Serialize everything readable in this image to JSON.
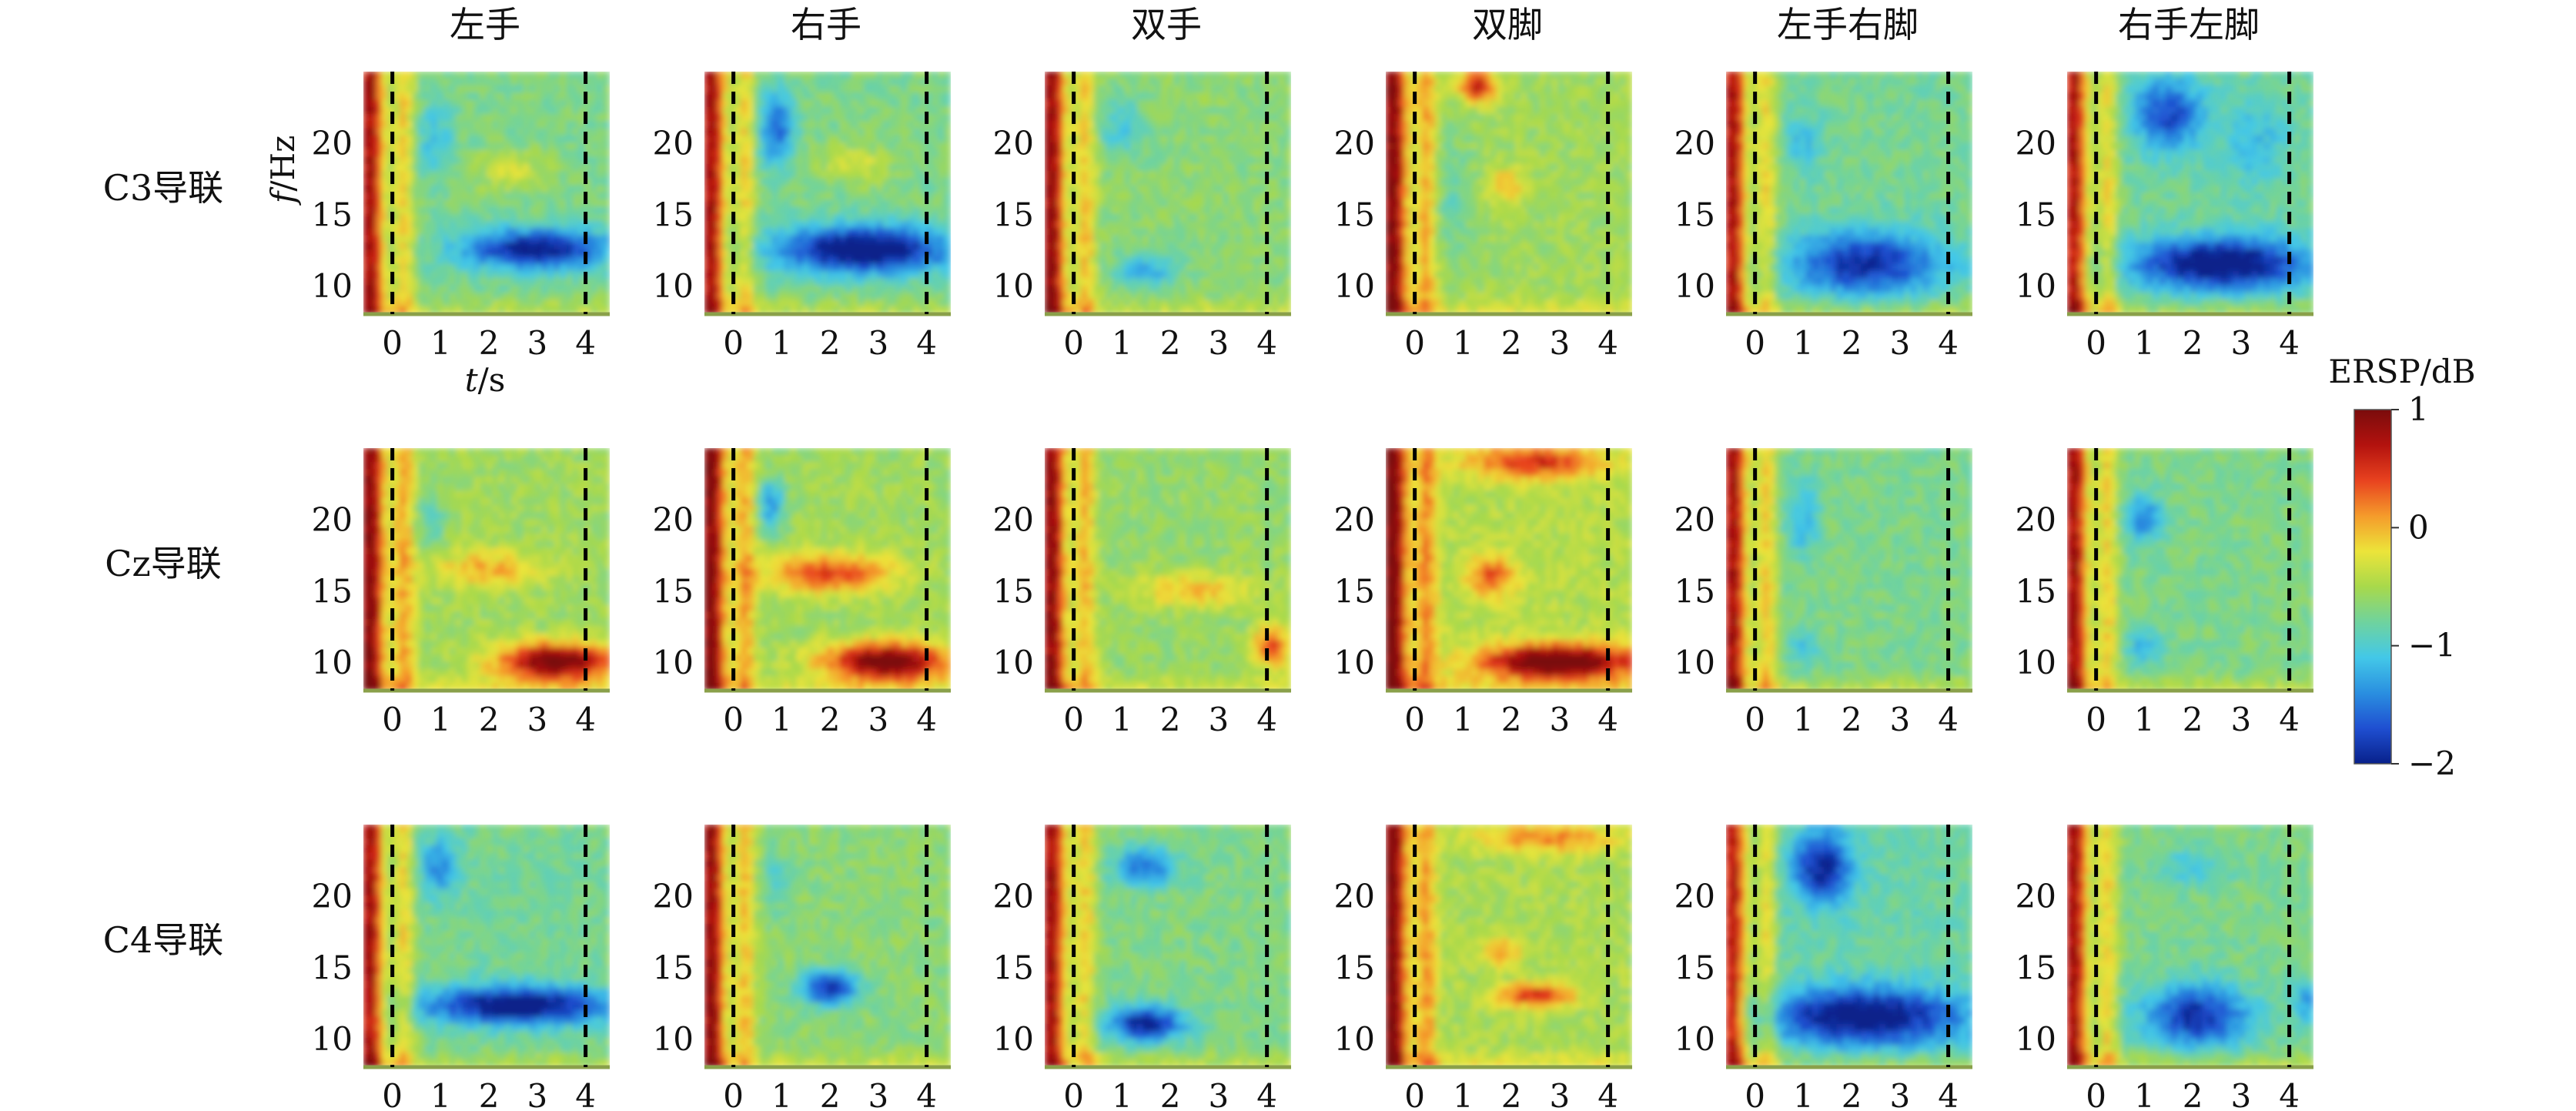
{
  "chart_data": {
    "type": "heatmap",
    "layout": "3x6 small multiples",
    "columns": [
      "左手",
      "右手",
      "双手",
      "双脚",
      "左手右脚",
      "右手左脚"
    ],
    "rows": [
      "C3导联",
      "Cz导联",
      "C4导联"
    ],
    "xlabel_prefix": "t",
    "xlabel_suffix": "/s",
    "ylabel_prefix": "f",
    "ylabel_suffix": "/Hz",
    "x_ticks": [
      "0",
      "1",
      "2",
      "3",
      "4"
    ],
    "y_ticks": [
      "20",
      "15",
      "10"
    ],
    "xlim": [
      -0.6,
      4.5
    ],
    "ylim": [
      8,
      25
    ],
    "event_markers_s": [
      0,
      4
    ],
    "colorbar": {
      "label": "ERSP/dB",
      "range": [
        -2,
        1
      ],
      "ticks": [
        "1",
        "0",
        "−1",
        "−2"
      ],
      "tick_values": [
        1,
        0,
        -1,
        -2
      ],
      "colors": [
        "#08208a",
        "#1f4fd1",
        "#2a8fe0",
        "#43c8e8",
        "#6fd39e",
        "#a8d94b",
        "#ece43a",
        "#f59b2b",
        "#e8421f",
        "#b3120e",
        "#7a0c0c"
      ]
    },
    "cells": [
      [
        {
          "base": -0.72,
          "regions": [
            {
              "t": 3.0,
              "f": 12.5,
              "wt": 1.5,
              "wf": 1.4,
              "v": -1.4
            },
            {
              "t": 0.9,
              "f": 20,
              "wt": 0.4,
              "wf": 2.5,
              "v": -0.4
            },
            {
              "t": 2.5,
              "f": 18,
              "wt": 0.8,
              "wf": 1.5,
              "v": 0.4
            }
          ]
        },
        {
          "base": -0.72,
          "regions": [
            {
              "t": 2.7,
              "f": 12.5,
              "wt": 1.8,
              "wf": 1.6,
              "v": -1.6
            },
            {
              "t": 0.9,
              "f": 21,
              "wt": 0.35,
              "wf": 2.5,
              "v": -0.9
            },
            {
              "t": 2.5,
              "f": 18.5,
              "wt": 0.8,
              "wf": 1.5,
              "v": 0.4
            }
          ]
        },
        {
          "base": -0.65,
          "regions": [
            {
              "t": 1.5,
              "f": 11,
              "wt": 0.6,
              "wf": 1.2,
              "v": -0.6
            },
            {
              "t": 1.0,
              "f": 21,
              "wt": 0.5,
              "wf": 2,
              "v": -0.4
            }
          ]
        },
        {
          "base": -0.55,
          "regions": [
            {
              "t": 1.3,
              "f": 24,
              "wt": 0.4,
              "wf": 1.2,
              "v": 1.2
            },
            {
              "t": 1.9,
              "f": 17,
              "wt": 0.4,
              "wf": 1.2,
              "v": 0.6
            },
            {
              "t": 0.8,
              "f": 16,
              "wt": 0.4,
              "wf": 5,
              "v": -0.3
            }
          ]
        },
        {
          "base": -0.75,
          "regions": [
            {
              "t": 2.3,
              "f": 11.5,
              "wt": 1.6,
              "wf": 2.2,
              "v": -1.2
            },
            {
              "t": 1.0,
              "f": 20,
              "wt": 0.4,
              "wf": 2,
              "v": -0.4
            }
          ]
        },
        {
          "base": -0.78,
          "regions": [
            {
              "t": 2.6,
              "f": 11.5,
              "wt": 1.8,
              "wf": 1.8,
              "v": -1.5
            },
            {
              "t": 1.5,
              "f": 22,
              "wt": 0.7,
              "wf": 2.5,
              "v": -1.0
            },
            {
              "t": 3.3,
              "f": 20,
              "wt": 0.6,
              "wf": 3,
              "v": -0.4
            }
          ]
        }
      ],
      [
        {
          "base": -0.55,
          "regions": [
            {
              "t": 3.4,
              "f": 10,
              "wt": 1.2,
              "wf": 1.3,
              "v": 1.7
            },
            {
              "t": 2.0,
              "f": 16.5,
              "wt": 1.1,
              "wf": 1.3,
              "v": 0.6
            },
            {
              "t": 0.8,
              "f": 20,
              "wt": 0.3,
              "wf": 2,
              "v": -0.4
            }
          ]
        },
        {
          "base": -0.55,
          "regions": [
            {
              "t": 3.2,
              "f": 10,
              "wt": 1.3,
              "wf": 1.3,
              "v": 1.7
            },
            {
              "t": 2.0,
              "f": 16.2,
              "wt": 1.3,
              "wf": 1.4,
              "v": 1.0
            },
            {
              "t": 0.8,
              "f": 21,
              "wt": 0.3,
              "wf": 1.8,
              "v": -0.8
            }
          ]
        },
        {
          "base": -0.6,
          "regions": [
            {
              "t": 2.5,
              "f": 15,
              "wt": 1.2,
              "wf": 1.2,
              "v": 0.6
            },
            {
              "t": 4.1,
              "f": 11,
              "wt": 0.4,
              "wf": 1.5,
              "v": 1.0
            }
          ]
        },
        {
          "base": -0.45,
          "regions": [
            {
              "t": 3.0,
              "f": 10,
              "wt": 1.6,
              "wf": 1.2,
              "v": 1.8
            },
            {
              "t": 2.5,
              "f": 24,
              "wt": 1.4,
              "wf": 1.2,
              "v": 1.0
            },
            {
              "t": 1.6,
              "f": 16,
              "wt": 0.5,
              "wf": 1.5,
              "v": 0.8
            }
          ]
        },
        {
          "base": -0.72,
          "regions": [
            {
              "t": 1.0,
              "f": 20,
              "wt": 0.35,
              "wf": 2.5,
              "v": -0.5
            },
            {
              "t": 1.0,
              "f": 11,
              "wt": 0.35,
              "wf": 1.2,
              "v": -0.4
            }
          ]
        },
        {
          "base": -0.72,
          "regions": [
            {
              "t": 1.0,
              "f": 20,
              "wt": 0.4,
              "wf": 1.5,
              "v": -0.8
            },
            {
              "t": 1.0,
              "f": 11,
              "wt": 0.35,
              "wf": 1.2,
              "v": -0.5
            }
          ]
        }
      ],
      [
        {
          "base": -0.75,
          "regions": [
            {
              "t": 2.6,
              "f": 12.3,
              "wt": 1.9,
              "wf": 1.3,
              "v": -1.5
            },
            {
              "t": 1.0,
              "f": 22,
              "wt": 0.4,
              "wf": 2,
              "v": -0.7
            }
          ]
        },
        {
          "base": -0.65,
          "regions": [
            {
              "t": 2.0,
              "f": 13.5,
              "wt": 0.6,
              "wf": 1.2,
              "v": -1.2
            },
            {
              "t": 0.9,
              "f": 21,
              "wt": 0.3,
              "wf": 2,
              "v": -0.3
            }
          ]
        },
        {
          "base": -0.7,
          "regions": [
            {
              "t": 1.5,
              "f": 11,
              "wt": 0.8,
              "wf": 1.2,
              "v": -1.3
            },
            {
              "t": 1.5,
              "f": 22,
              "wt": 0.6,
              "wf": 1.3,
              "v": -0.9
            }
          ]
        },
        {
          "base": -0.5,
          "regions": [
            {
              "t": 2.5,
              "f": 13,
              "wt": 0.8,
              "wf": 0.8,
              "v": 1.1
            },
            {
              "t": 2.8,
              "f": 24,
              "wt": 1.5,
              "wf": 1,
              "v": 0.7
            },
            {
              "t": 1.8,
              "f": 16,
              "wt": 0.4,
              "wf": 1,
              "v": 0.6
            }
          ]
        },
        {
          "base": -0.82,
          "regions": [
            {
              "t": 2.3,
              "f": 11.5,
              "wt": 2.0,
              "wf": 2.0,
              "v": -1.4
            },
            {
              "t": 1.4,
              "f": 22,
              "wt": 0.6,
              "wf": 2.5,
              "v": -1.2
            }
          ]
        },
        {
          "base": -0.72,
          "regions": [
            {
              "t": 2.1,
              "f": 11.5,
              "wt": 1.1,
              "wf": 2.2,
              "v": -1.2
            },
            {
              "t": 4.4,
              "f": 12.5,
              "wt": 0.3,
              "wf": 1.5,
              "v": -0.6
            },
            {
              "t": 2.0,
              "f": 22,
              "wt": 0.7,
              "wf": 1.2,
              "v": -0.4
            }
          ]
        }
      ]
    ]
  }
}
